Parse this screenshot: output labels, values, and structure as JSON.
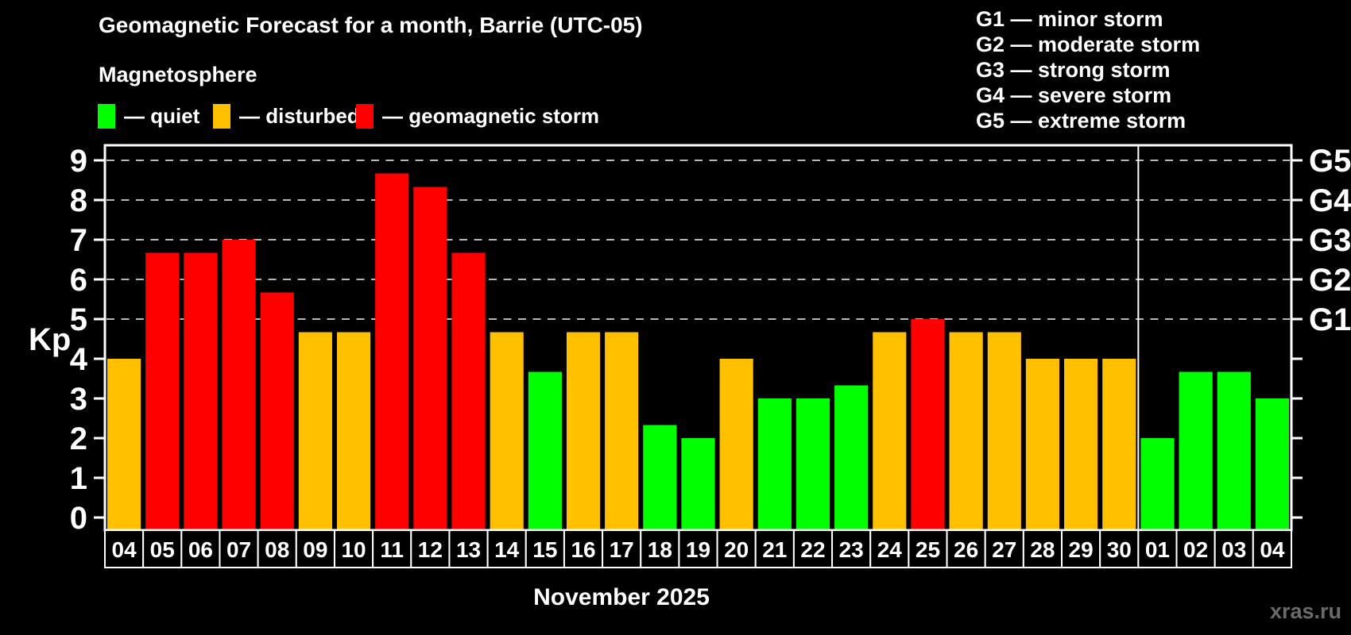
{
  "header": {
    "title": "Geomagnetic Forecast for a month, Barrie (UTC-05)",
    "subtitle": "Magnetosphere",
    "status_legend": [
      {
        "key": "quiet",
        "color": "#00ff00",
        "label": "— quiet"
      },
      {
        "key": "disturbed",
        "color": "#ffc000",
        "label": "— disturbed"
      },
      {
        "key": "storm",
        "color": "#ff0000",
        "label": "— geomagnetic storm"
      }
    ],
    "g_scale_legend": [
      {
        "label": "G1 — minor storm"
      },
      {
        "label": "G2 — moderate storm"
      },
      {
        "label": "G3 — strong storm"
      },
      {
        "label": "G4 — severe storm"
      },
      {
        "label": "G5 — extreme storm"
      }
    ]
  },
  "chart_data": {
    "type": "bar",
    "title": "Geomagnetic Forecast for a month, Barrie (UTC-05)",
    "subtitle": "Magnetosphere",
    "ylabel": "Kp",
    "xlabel": "November 2025",
    "ylim": [
      0,
      9
    ],
    "yticks": [
      0,
      1,
      2,
      3,
      4,
      5,
      6,
      7,
      8,
      9
    ],
    "gridline_kp": [
      5,
      6,
      7,
      8,
      9
    ],
    "grid": "dashed horizontal lines at Kp 5-9 (G1-G5 storm levels)",
    "legend_position": "top-left",
    "right_axis_labels": [
      {
        "kp": 5,
        "label": "G1"
      },
      {
        "kp": 6,
        "label": "G2"
      },
      {
        "kp": 7,
        "label": "G3"
      },
      {
        "kp": 8,
        "label": "G4"
      },
      {
        "kp": 9,
        "label": "G5"
      }
    ],
    "categories": [
      "04",
      "05",
      "06",
      "07",
      "08",
      "09",
      "10",
      "11",
      "12",
      "13",
      "14",
      "15",
      "16",
      "17",
      "18",
      "19",
      "20",
      "21",
      "22",
      "23",
      "24",
      "25",
      "26",
      "27",
      "28",
      "29",
      "30",
      "01",
      "02",
      "03",
      "04"
    ],
    "month_boundary_index": 27,
    "series": [
      {
        "name": "Kp forecast",
        "values": [
          4,
          6.67,
          6.67,
          7,
          5.67,
          4.67,
          4.67,
          8.67,
          8.33,
          6.67,
          4.67,
          3.67,
          4.67,
          4.67,
          2.33,
          2,
          4,
          3,
          3,
          3.33,
          4.67,
          5,
          4.67,
          4.67,
          4,
          4,
          4,
          2,
          3.67,
          3.67,
          3
        ],
        "statuses": [
          "disturbed",
          "storm",
          "storm",
          "storm",
          "storm",
          "disturbed",
          "disturbed",
          "storm",
          "storm",
          "storm",
          "disturbed",
          "quiet",
          "disturbed",
          "disturbed",
          "quiet",
          "quiet",
          "disturbed",
          "quiet",
          "quiet",
          "quiet",
          "disturbed",
          "storm",
          "disturbed",
          "disturbed",
          "disturbed",
          "disturbed",
          "disturbed",
          "quiet",
          "quiet",
          "quiet",
          "quiet"
        ]
      }
    ],
    "status_colors": {
      "quiet": "#00ff00",
      "disturbed": "#ffc000",
      "storm": "#ff0000"
    },
    "footer_label": "November 2025",
    "watermark": "xras.ru"
  }
}
